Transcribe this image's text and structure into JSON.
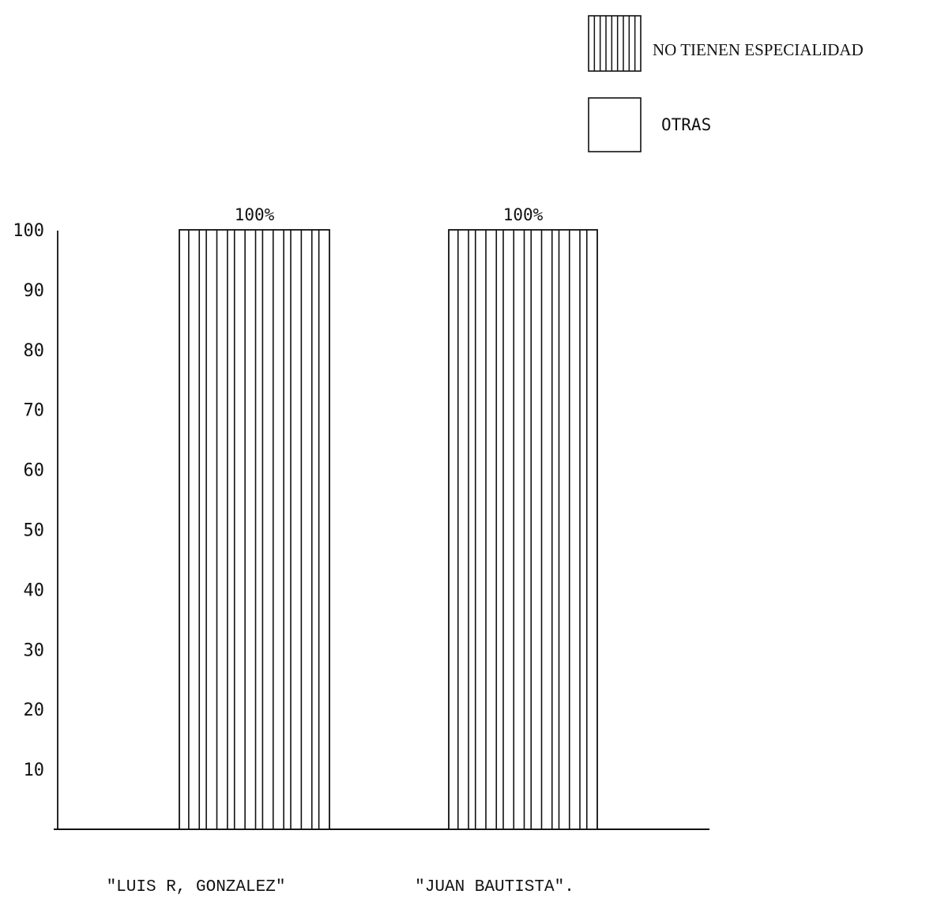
{
  "chart_data": {
    "type": "bar",
    "title": "",
    "xlabel": "",
    "ylabel": "",
    "ylim": [
      0,
      100
    ],
    "yticks": [
      10,
      20,
      30,
      40,
      50,
      60,
      70,
      80,
      90,
      100
    ],
    "categories": [
      "\"LUIS R, GONZALEZ\"",
      "\"JUAN BAUTISTA\"."
    ],
    "series": [
      {
        "name": "NO TIENEN ESPECIALIDAD",
        "values": [
          100,
          100
        ],
        "pattern": "vertical-hatch"
      },
      {
        "name": "OTRAS",
        "values": [
          0,
          0
        ],
        "pattern": "empty"
      }
    ],
    "data_labels": [
      "100%",
      "100%"
    ],
    "legend_placement": "top-right",
    "grid": false
  },
  "colors": {
    "ink": "#111111",
    "background": "#ffffff"
  }
}
